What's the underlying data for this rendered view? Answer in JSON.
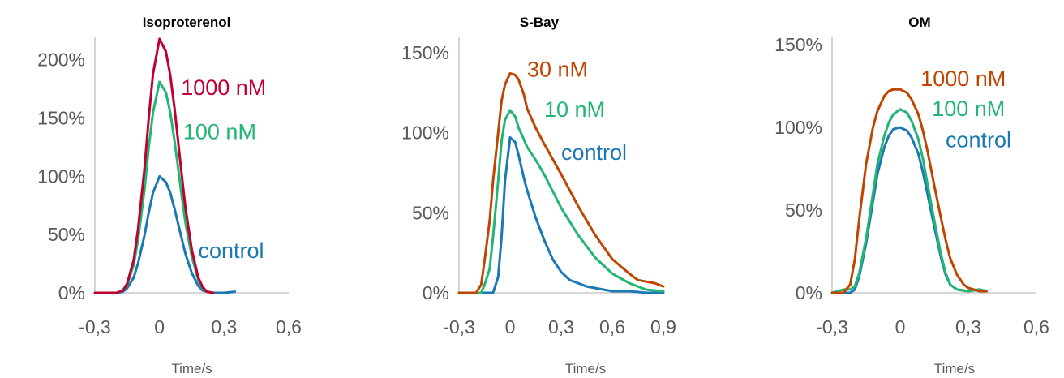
{
  "chart_data": [
    {
      "type": "line",
      "title": "Isoproterenol",
      "xlabel": "Time/s",
      "ylabel": "",
      "xlim": [
        -0.3,
        0.6
      ],
      "ylim": [
        0,
        2.2
      ],
      "xticks": [
        -0.3,
        0,
        0.3,
        0.6
      ],
      "xtick_labels": [
        "-0,3",
        "0",
        "0,3",
        "0,6"
      ],
      "yticks": [
        0,
        0.5,
        1.0,
        1.5,
        2.0
      ],
      "ytick_labels": [
        "0%",
        "50%",
        "100%",
        "150%",
        "200%"
      ],
      "grid": false,
      "series": [
        {
          "name": "control",
          "color": "#1a78b4",
          "x": [
            -0.3,
            -0.2,
            -0.17,
            -0.15,
            -0.12,
            -0.1,
            -0.07,
            -0.05,
            -0.03,
            0,
            0.03,
            0.05,
            0.07,
            0.1,
            0.12,
            0.15,
            0.18,
            0.2,
            0.22,
            0.25,
            0.3,
            0.35
          ],
          "y": [
            0,
            0,
            0.01,
            0.04,
            0.13,
            0.25,
            0.49,
            0.69,
            0.86,
            1.0,
            0.95,
            0.86,
            0.72,
            0.49,
            0.34,
            0.17,
            0.06,
            0.02,
            0.01,
            0,
            0,
            0.01
          ]
        },
        {
          "name": "100 nM",
          "color": "#22b573",
          "x": [
            -0.3,
            -0.2,
            -0.17,
            -0.15,
            -0.12,
            -0.1,
            -0.07,
            -0.05,
            -0.03,
            0,
            0.03,
            0.05,
            0.07,
            0.1,
            0.12,
            0.15,
            0.18,
            0.2,
            0.22,
            0.25
          ],
          "y": [
            0,
            0,
            0.02,
            0.07,
            0.24,
            0.45,
            0.88,
            1.25,
            1.55,
            1.81,
            1.72,
            1.55,
            1.3,
            0.88,
            0.61,
            0.31,
            0.11,
            0.04,
            0.01,
            0
          ]
        },
        {
          "name": "1000 nM",
          "color": "#c00030",
          "x": [
            -0.3,
            -0.2,
            -0.17,
            -0.15,
            -0.12,
            -0.1,
            -0.07,
            -0.05,
            -0.03,
            0,
            0.03,
            0.05,
            0.07,
            0.1,
            0.12,
            0.15,
            0.18,
            0.2,
            0.22,
            0.25
          ],
          "y": [
            0,
            0,
            0.02,
            0.08,
            0.28,
            0.54,
            1.06,
            1.5,
            1.88,
            2.18,
            2.07,
            1.87,
            1.58,
            1.07,
            0.74,
            0.37,
            0.13,
            0.05,
            0.01,
            0
          ]
        }
      ],
      "annotations": [
        {
          "text": "1000 nM",
          "x": 0.1,
          "y": 1.7,
          "color": "#c00030"
        },
        {
          "text": "100 nM",
          "x": 0.11,
          "y": 1.32,
          "color": "#22b573"
        },
        {
          "text": "control",
          "x": 0.18,
          "y": 0.3,
          "color": "#1a78b4"
        }
      ]
    },
    {
      "type": "line",
      "title": "S-Bay",
      "xlabel": "Time/s",
      "ylabel": "",
      "xlim": [
        -0.3,
        0.9
      ],
      "ylim": [
        0,
        1.6
      ],
      "xticks": [
        -0.3,
        0,
        0.3,
        0.6,
        0.9
      ],
      "xtick_labels": [
        "-0,3",
        "0",
        "0,3",
        "0,6",
        "0,9"
      ],
      "yticks": [
        0,
        0.5,
        1.0,
        1.5
      ],
      "ytick_labels": [
        "0%",
        "50%",
        "100%",
        "150%"
      ],
      "grid": false,
      "series": [
        {
          "name": "control",
          "color": "#1a78b4",
          "x": [
            -0.3,
            -0.1,
            -0.07,
            -0.05,
            -0.03,
            0,
            0.03,
            0.05,
            0.08,
            0.1,
            0.15,
            0.2,
            0.25,
            0.3,
            0.35,
            0.4,
            0.45,
            0.5,
            0.6,
            0.7,
            0.8,
            0.9
          ],
          "y": [
            0,
            0,
            0.1,
            0.35,
            0.7,
            0.97,
            0.94,
            0.86,
            0.72,
            0.64,
            0.47,
            0.33,
            0.21,
            0.13,
            0.08,
            0.06,
            0.04,
            0.03,
            0.01,
            0.01,
            0,
            0
          ]
        },
        {
          "name": "10 nM",
          "color": "#22b573",
          "x": [
            -0.3,
            -0.17,
            -0.15,
            -0.12,
            -0.1,
            -0.07,
            -0.05,
            -0.03,
            0,
            0.03,
            0.05,
            0.08,
            0.1,
            0.15,
            0.2,
            0.3,
            0.4,
            0.5,
            0.6,
            0.7,
            0.8,
            0.9
          ],
          "y": [
            0,
            0,
            0.05,
            0.15,
            0.35,
            0.7,
            0.95,
            1.08,
            1.14,
            1.1,
            1.03,
            0.96,
            0.91,
            0.83,
            0.74,
            0.53,
            0.36,
            0.22,
            0.12,
            0.06,
            0.02,
            0.01
          ]
        },
        {
          "name": "30 nM",
          "color": "#c04500",
          "x": [
            -0.3,
            -0.2,
            -0.17,
            -0.15,
            -0.12,
            -0.1,
            -0.07,
            -0.05,
            -0.03,
            0,
            0.03,
            0.05,
            0.08,
            0.1,
            0.15,
            0.2,
            0.3,
            0.4,
            0.5,
            0.6,
            0.7,
            0.75,
            0.8,
            0.85,
            0.9
          ],
          "y": [
            0,
            0,
            0.05,
            0.2,
            0.45,
            0.7,
            1.0,
            1.2,
            1.3,
            1.37,
            1.36,
            1.33,
            1.24,
            1.15,
            1.03,
            0.93,
            0.74,
            0.54,
            0.36,
            0.21,
            0.12,
            0.08,
            0.07,
            0.06,
            0.04
          ]
        }
      ],
      "annotations": [
        {
          "text": "30 nM",
          "x": 0.1,
          "y": 1.35,
          "color": "#c04500"
        },
        {
          "text": "10 nM",
          "x": 0.2,
          "y": 1.1,
          "color": "#22b573"
        },
        {
          "text": "control",
          "x": 0.3,
          "y": 0.83,
          "color": "#1a78b4"
        }
      ]
    },
    {
      "type": "line",
      "title": "OM",
      "xlabel": "Time/s",
      "ylabel": "",
      "xlim": [
        -0.3,
        0.6
      ],
      "ylim": [
        0,
        1.55
      ],
      "xticks": [
        -0.3,
        0,
        0.3,
        0.6
      ],
      "xtick_labels": [
        "-0,3",
        "0",
        "0,3",
        "0,6"
      ],
      "yticks": [
        0,
        0.5,
        1.0,
        1.5
      ],
      "ytick_labels": [
        "0%",
        "50%",
        "100%",
        "150%"
      ],
      "grid": false,
      "series": [
        {
          "name": "control",
          "color": "#1a78b4",
          "x": [
            -0.3,
            -0.22,
            -0.2,
            -0.18,
            -0.15,
            -0.12,
            -0.1,
            -0.07,
            -0.05,
            -0.03,
            0,
            0.03,
            0.05,
            0.08,
            0.1,
            0.12,
            0.15,
            0.18,
            0.2,
            0.22,
            0.25,
            0.3,
            0.35,
            0.38
          ],
          "y": [
            0,
            0,
            0.02,
            0.1,
            0.3,
            0.55,
            0.72,
            0.88,
            0.95,
            0.99,
            1.0,
            0.98,
            0.94,
            0.84,
            0.73,
            0.6,
            0.4,
            0.21,
            0.11,
            0.05,
            0.02,
            0.01,
            0.02,
            0.01
          ]
        },
        {
          "name": "100 nM",
          "color": "#22b573",
          "x": [
            -0.3,
            -0.25,
            -0.22,
            -0.2,
            -0.18,
            -0.15,
            -0.12,
            -0.1,
            -0.07,
            -0.05,
            -0.03,
            0,
            0.03,
            0.05,
            0.08,
            0.1,
            0.12,
            0.15,
            0.18,
            0.2,
            0.22,
            0.25,
            0.3,
            0.35,
            0.38
          ],
          "y": [
            0,
            0.02,
            0.02,
            0.04,
            0.12,
            0.33,
            0.6,
            0.78,
            0.95,
            1.03,
            1.08,
            1.11,
            1.09,
            1.04,
            0.93,
            0.81,
            0.66,
            0.44,
            0.23,
            0.12,
            0.05,
            0.02,
            0.01,
            0.02,
            0.01
          ]
        },
        {
          "name": "1000 nM",
          "color": "#c04500",
          "x": [
            -0.3,
            -0.27,
            -0.25,
            -0.22,
            -0.2,
            -0.18,
            -0.15,
            -0.12,
            -0.1,
            -0.07,
            -0.05,
            -0.03,
            0,
            0.03,
            0.05,
            0.08,
            0.1,
            0.12,
            0.15,
            0.18,
            0.2,
            0.22,
            0.25,
            0.28,
            0.3,
            0.35,
            0.38
          ],
          "y": [
            0,
            0,
            0,
            0.05,
            0.2,
            0.45,
            0.78,
            1.0,
            1.1,
            1.19,
            1.22,
            1.23,
            1.23,
            1.21,
            1.17,
            1.08,
            0.98,
            0.86,
            0.65,
            0.45,
            0.32,
            0.21,
            0.11,
            0.05,
            0.03,
            0.01,
            0.01
          ]
        }
      ],
      "annotations": [
        {
          "text": "1000 nM",
          "x": 0.09,
          "y": 1.25,
          "color": "#c04500"
        },
        {
          "text": "100 nM",
          "x": 0.14,
          "y": 1.07,
          "color": "#22b573"
        },
        {
          "text": "control",
          "x": 0.2,
          "y": 0.88,
          "color": "#1a78b4"
        }
      ]
    }
  ]
}
